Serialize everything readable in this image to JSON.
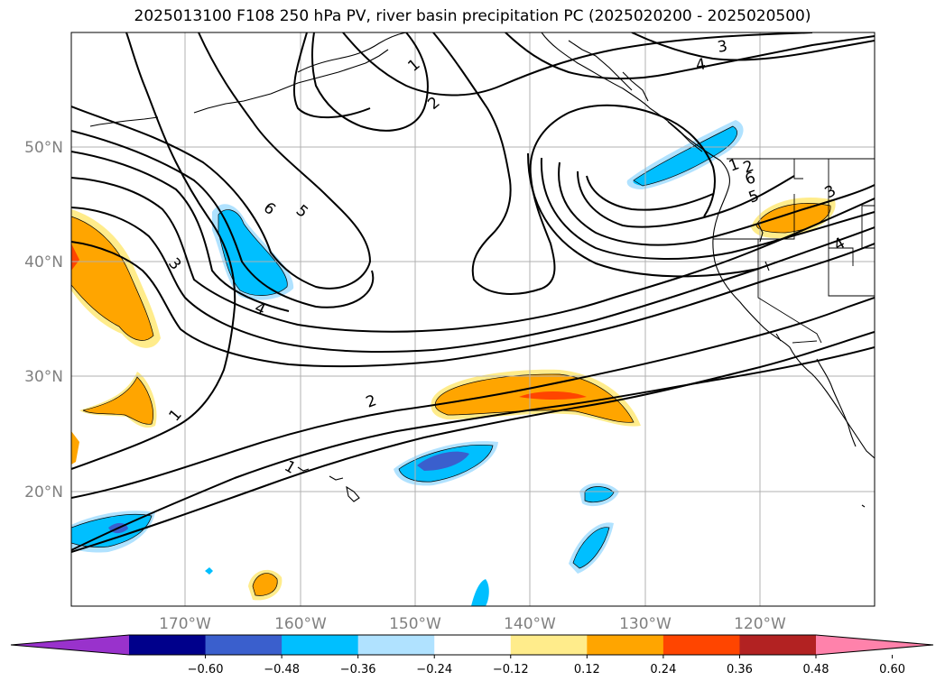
{
  "title": "2025013100 F108 250 hPa PV, river basin precipitation PC (2025020200 - 2025020500)",
  "map": {
    "lat_labels": [
      "50°N",
      "40°N",
      "30°N",
      "20°N"
    ],
    "lon_labels": [
      "170°W",
      "160°W",
      "150°W",
      "140°W",
      "130°W",
      "120°W"
    ],
    "pv_contour_labels": [
      "1",
      "2",
      "3",
      "4",
      "5",
      "6",
      "1",
      "2",
      "3",
      "4",
      "1",
      "1",
      "2",
      "5",
      "6",
      "3",
      "4"
    ],
    "pv_contour_color": "#000000",
    "gridlines": true
  },
  "colorbar": {
    "orientation": "horizontal",
    "extend": "both",
    "colors": [
      "#9932cc",
      "#00008b",
      "#3a5fcd",
      "#00bfff",
      "#b0e2ff",
      "#ffffff",
      "#ffec8b",
      "#ffa500",
      "#ff4500",
      "#b22222",
      "#ff82ab"
    ],
    "tick_labels": [
      "−0.60",
      "−0.48",
      "−0.36",
      "−0.24",
      "−0.12",
      "0.12",
      "0.24",
      "0.36",
      "0.48",
      "0.60"
    ]
  }
}
